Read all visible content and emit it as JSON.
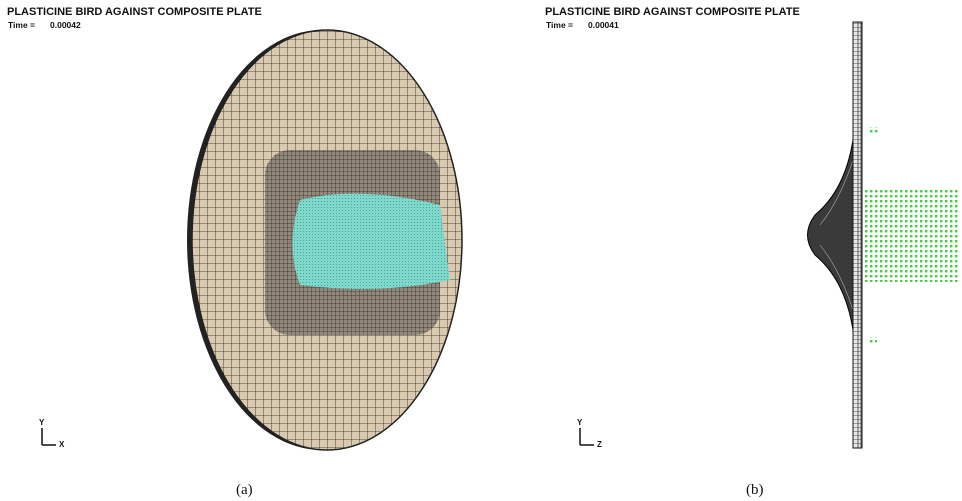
{
  "panels": [
    {
      "title": "PLASTICINE BIRD AGAINST COMPOSITE PLATE",
      "time_label": "Time =",
      "time": "0.00042",
      "axis_vertical": "Y",
      "axis_horizontal": "X",
      "caption": "(a)"
    },
    {
      "title": "PLASTICINE BIRD AGAINST COMPOSITE PLATE",
      "time_label": "Time =",
      "time": "0.00041",
      "axis_vertical": "Y",
      "axis_horizontal": "Z",
      "caption": "(b)"
    }
  ]
}
